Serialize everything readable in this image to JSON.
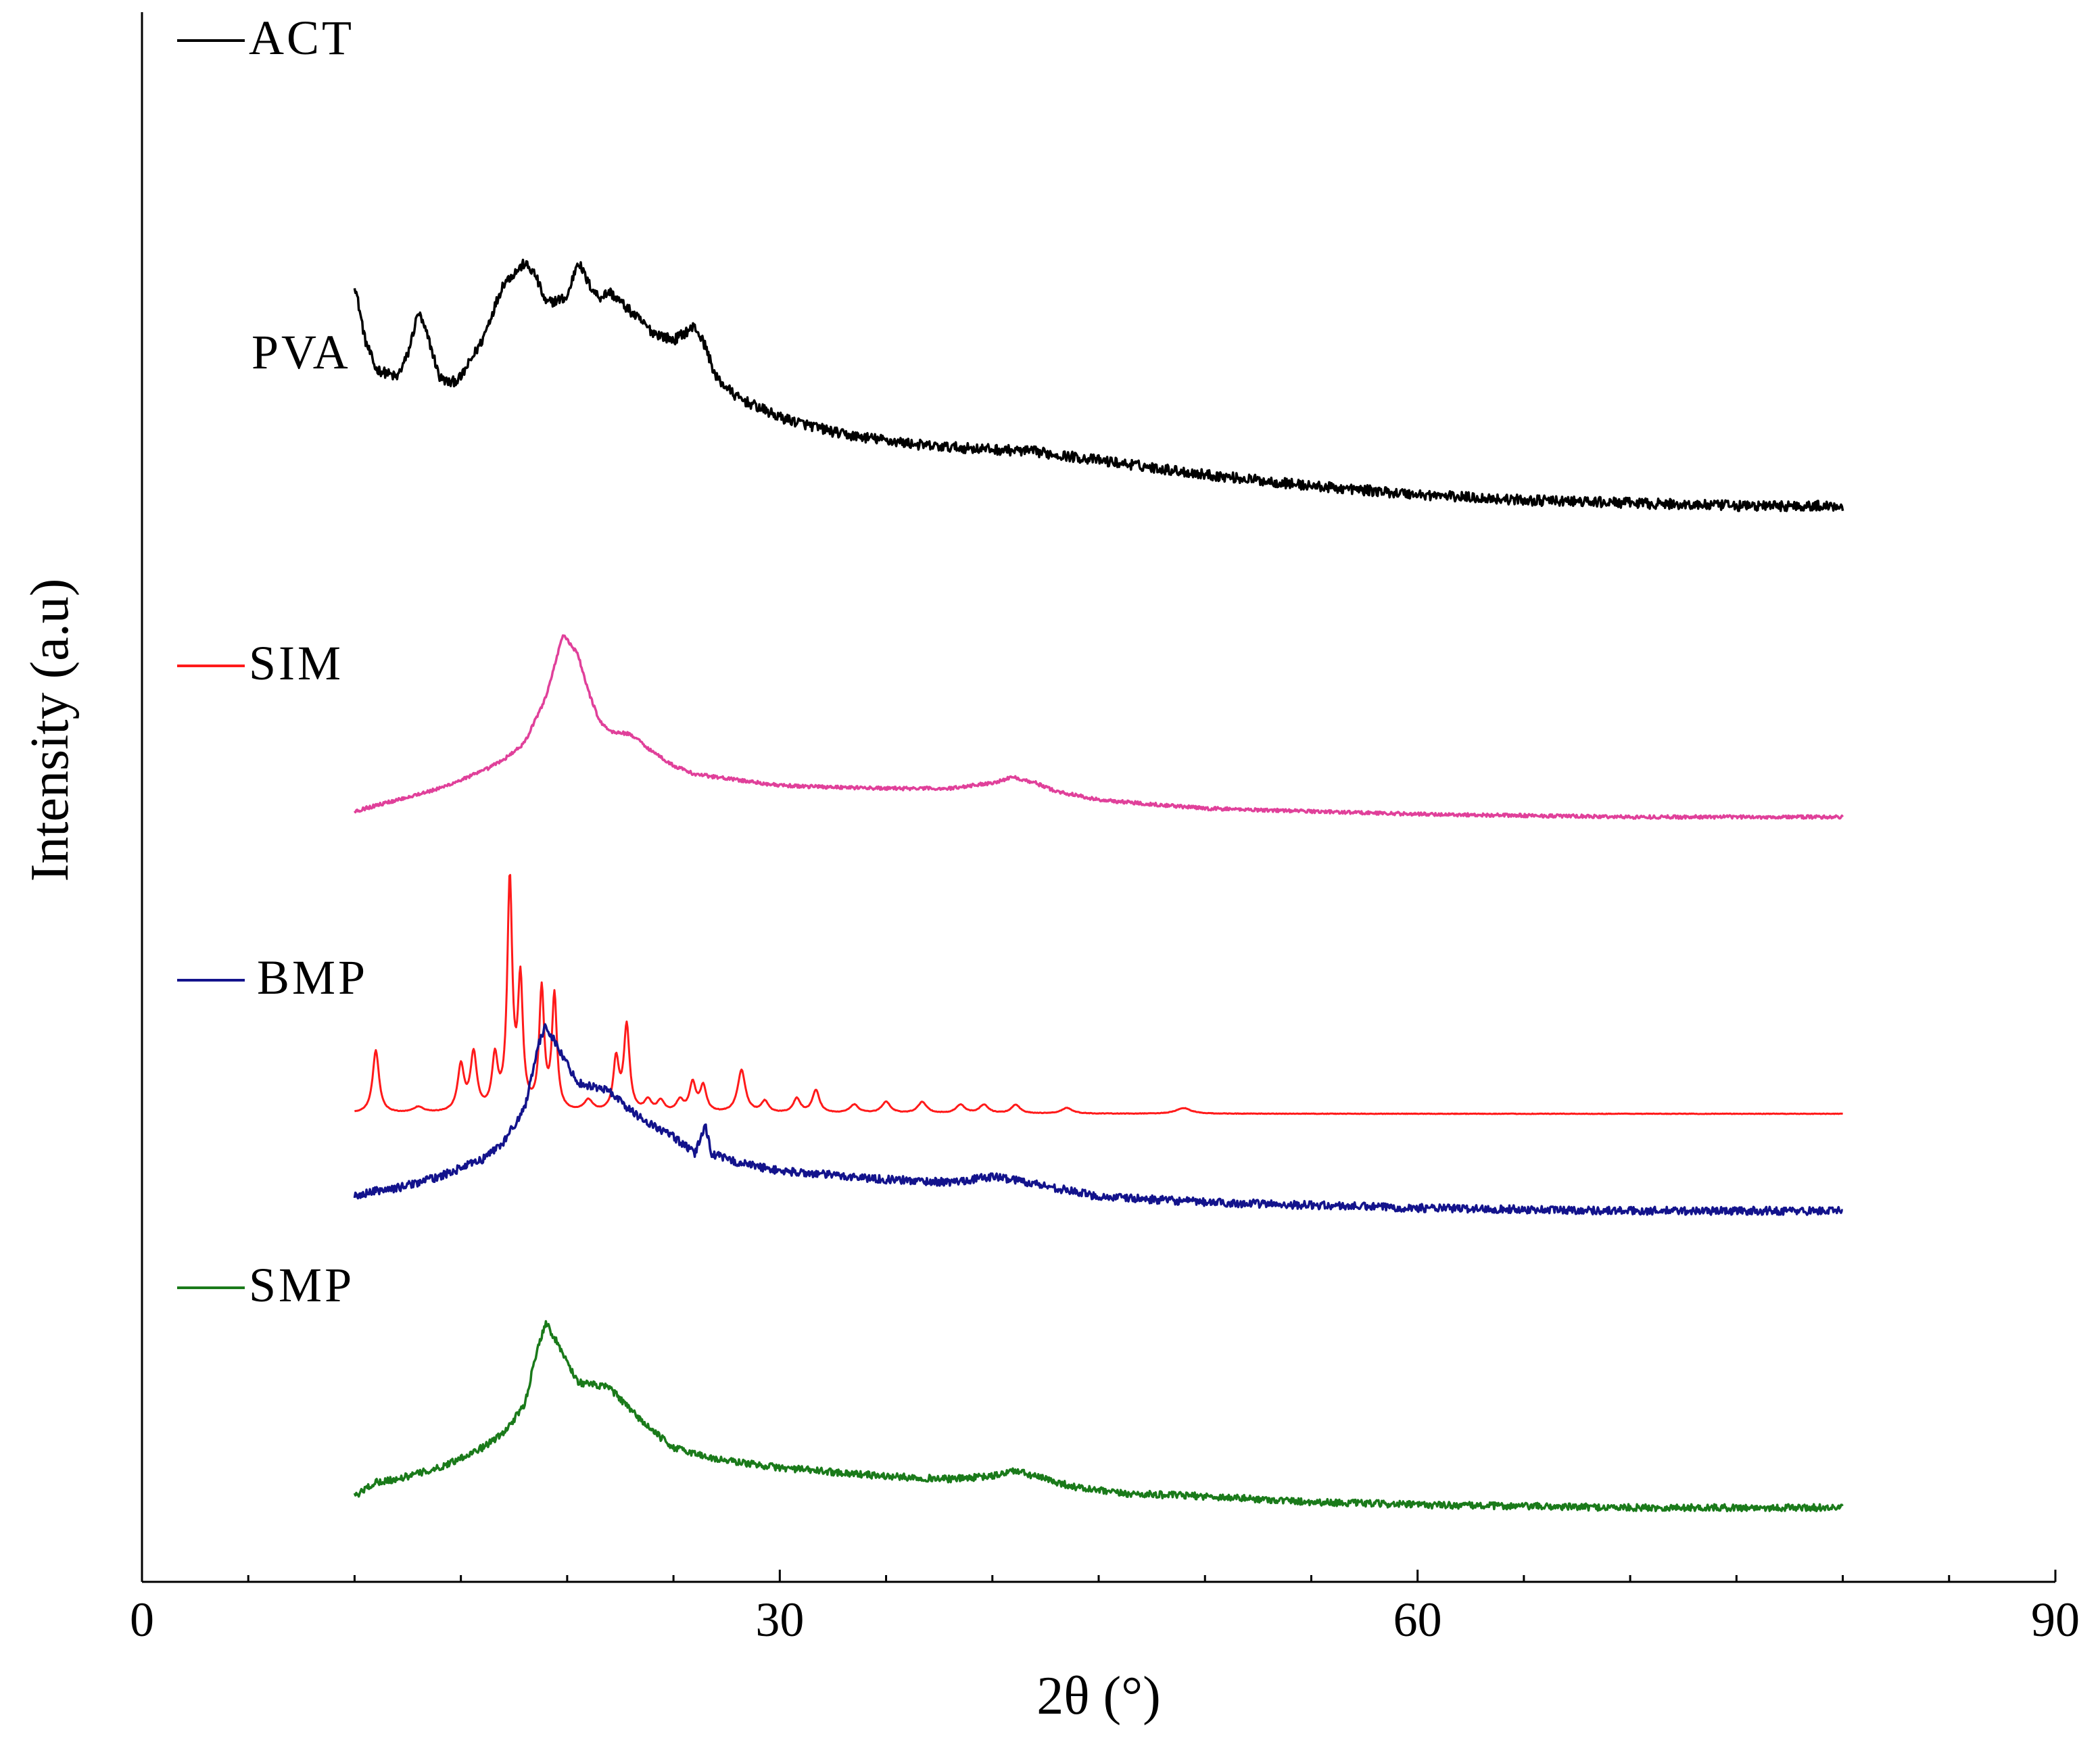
{
  "chart_data": {
    "type": "line",
    "title": "",
    "xlabel": "2θ (°)",
    "ylabel": "Intensity (a.u)",
    "xlim": [
      0,
      90
    ],
    "ylim": [
      0,
      5.5
    ],
    "x_ticks": [
      "0",
      "30",
      "60",
      "90"
    ],
    "grid": false,
    "x_range_measured": [
      10,
      80
    ],
    "series": [
      {
        "name": "ACT",
        "color": "#000000",
        "noise": 0.018,
        "keypoints": [
          [
            10,
            4.55
          ],
          [
            10.5,
            4.35
          ],
          [
            11,
            4.25
          ],
          [
            12,
            4.22
          ],
          [
            12.5,
            4.3
          ],
          [
            13,
            4.45
          ],
          [
            13.5,
            4.35
          ],
          [
            14,
            4.22
          ],
          [
            14.5,
            4.2
          ],
          [
            15,
            4.22
          ],
          [
            16,
            4.35
          ],
          [
            17,
            4.55
          ],
          [
            18,
            4.62
          ],
          [
            18.5,
            4.58
          ],
          [
            19,
            4.48
          ],
          [
            20,
            4.5
          ],
          [
            20.5,
            4.63
          ],
          [
            21,
            4.55
          ],
          [
            21.5,
            4.5
          ],
          [
            22,
            4.52
          ],
          [
            23,
            4.45
          ],
          [
            24,
            4.38
          ],
          [
            25,
            4.35
          ],
          [
            26,
            4.4
          ],
          [
            26.5,
            4.33
          ],
          [
            27,
            4.22
          ],
          [
            28,
            4.15
          ],
          [
            30,
            4.08
          ],
          [
            33,
            4.02
          ],
          [
            37,
            3.98
          ],
          [
            42,
            3.96
          ],
          [
            45,
            3.93
          ],
          [
            50,
            3.88
          ],
          [
            55,
            3.84
          ],
          [
            60,
            3.81
          ],
          [
            65,
            3.79
          ],
          [
            70,
            3.78
          ],
          [
            75,
            3.77
          ],
          [
            80,
            3.77
          ]
        ]
      },
      {
        "name": "PVA",
        "color": "#e0409a",
        "noise": 0.006,
        "keypoints": [
          [
            10,
            2.7
          ],
          [
            11,
            2.72
          ],
          [
            12,
            2.74
          ],
          [
            14,
            2.78
          ],
          [
            16,
            2.84
          ],
          [
            17,
            2.88
          ],
          [
            18,
            2.94
          ],
          [
            19,
            3.1
          ],
          [
            19.8,
            3.32
          ],
          [
            20.5,
            3.25
          ],
          [
            21,
            3.12
          ],
          [
            21.5,
            3.02
          ],
          [
            22,
            2.98
          ],
          [
            23,
            2.97
          ],
          [
            24,
            2.91
          ],
          [
            25,
            2.86
          ],
          [
            26,
            2.83
          ],
          [
            28,
            2.81
          ],
          [
            30,
            2.79
          ],
          [
            35,
            2.78
          ],
          [
            38,
            2.78
          ],
          [
            40,
            2.8
          ],
          [
            41,
            2.82
          ],
          [
            42,
            2.8
          ],
          [
            43,
            2.77
          ],
          [
            45,
            2.74
          ],
          [
            50,
            2.71
          ],
          [
            55,
            2.7
          ],
          [
            60,
            2.69
          ],
          [
            70,
            2.68
          ],
          [
            80,
            2.68
          ]
        ]
      },
      {
        "name": "SIM",
        "color": "#ff1a1a",
        "noise": 0.001,
        "baseline": [
          [
            10,
            1.64
          ],
          [
            80,
            1.64
          ]
        ],
        "peaks": [
          [
            11,
            0.22,
            0.18
          ],
          [
            13,
            0.02,
            0.3
          ],
          [
            15,
            0.16,
            0.18
          ],
          [
            15.6,
            0.2,
            0.18
          ],
          [
            16.6,
            0.18,
            0.16
          ],
          [
            17.3,
            0.8,
            0.14
          ],
          [
            17.8,
            0.44,
            0.14
          ],
          [
            18.8,
            0.42,
            0.14
          ],
          [
            19.4,
            0.4,
            0.14
          ],
          [
            21,
            0.04,
            0.25
          ],
          [
            22.3,
            0.18,
            0.16
          ],
          [
            22.8,
            0.3,
            0.16
          ],
          [
            23.8,
            0.04,
            0.2
          ],
          [
            24.4,
            0.04,
            0.2
          ],
          [
            25.3,
            0.04,
            0.2
          ],
          [
            25.9,
            0.1,
            0.18
          ],
          [
            26.4,
            0.09,
            0.18
          ],
          [
            28.2,
            0.15,
            0.22
          ],
          [
            29.3,
            0.04,
            0.2
          ],
          [
            30.8,
            0.05,
            0.2
          ],
          [
            31.7,
            0.08,
            0.2
          ],
          [
            33.5,
            0.03,
            0.25
          ],
          [
            35,
            0.04,
            0.25
          ],
          [
            36.7,
            0.04,
            0.25
          ],
          [
            38.5,
            0.03,
            0.25
          ],
          [
            39.6,
            0.03,
            0.25
          ],
          [
            41.1,
            0.03,
            0.25
          ],
          [
            43.5,
            0.02,
            0.3
          ],
          [
            49,
            0.02,
            0.4
          ]
        ]
      },
      {
        "name": "BMP",
        "color": "#13138c",
        "noise": 0.014,
        "keypoints": [
          [
            10,
            1.35
          ],
          [
            11,
            1.37
          ],
          [
            12,
            1.38
          ],
          [
            14,
            1.42
          ],
          [
            16,
            1.48
          ],
          [
            17,
            1.54
          ],
          [
            18,
            1.66
          ],
          [
            18.6,
            1.87
          ],
          [
            19,
            1.95
          ],
          [
            19.8,
            1.84
          ],
          [
            20.5,
            1.75
          ],
          [
            22,
            1.72
          ],
          [
            23,
            1.65
          ],
          [
            24,
            1.6
          ],
          [
            25,
            1.56
          ],
          [
            26,
            1.5
          ],
          [
            26.5,
            1.6
          ],
          [
            26.8,
            1.5
          ],
          [
            28,
            1.47
          ],
          [
            30,
            1.44
          ],
          [
            35,
            1.41
          ],
          [
            38,
            1.4
          ],
          [
            40,
            1.42
          ],
          [
            41,
            1.41
          ],
          [
            43,
            1.38
          ],
          [
            45,
            1.35
          ],
          [
            50,
            1.33
          ],
          [
            55,
            1.32
          ],
          [
            60,
            1.31
          ],
          [
            70,
            1.3
          ],
          [
            80,
            1.3
          ]
        ]
      },
      {
        "name": "SMP",
        "color": "#1a7a1a",
        "noise": 0.012,
        "keypoints": [
          [
            10,
            0.3
          ],
          [
            11,
            0.35
          ],
          [
            12,
            0.36
          ],
          [
            14,
            0.4
          ],
          [
            16,
            0.47
          ],
          [
            17,
            0.52
          ],
          [
            18,
            0.62
          ],
          [
            18.6,
            0.82
          ],
          [
            19,
            0.91
          ],
          [
            19.8,
            0.8
          ],
          [
            20.5,
            0.7
          ],
          [
            22,
            0.68
          ],
          [
            23,
            0.6
          ],
          [
            24,
            0.53
          ],
          [
            25,
            0.47
          ],
          [
            27,
            0.43
          ],
          [
            30,
            0.4
          ],
          [
            35,
            0.37
          ],
          [
            38,
            0.36
          ],
          [
            40,
            0.37
          ],
          [
            41,
            0.39
          ],
          [
            42,
            0.37
          ],
          [
            44,
            0.33
          ],
          [
            46,
            0.31
          ],
          [
            50,
            0.3
          ],
          [
            55,
            0.28
          ],
          [
            60,
            0.27
          ],
          [
            70,
            0.26
          ],
          [
            80,
            0.26
          ]
        ]
      }
    ]
  }
}
